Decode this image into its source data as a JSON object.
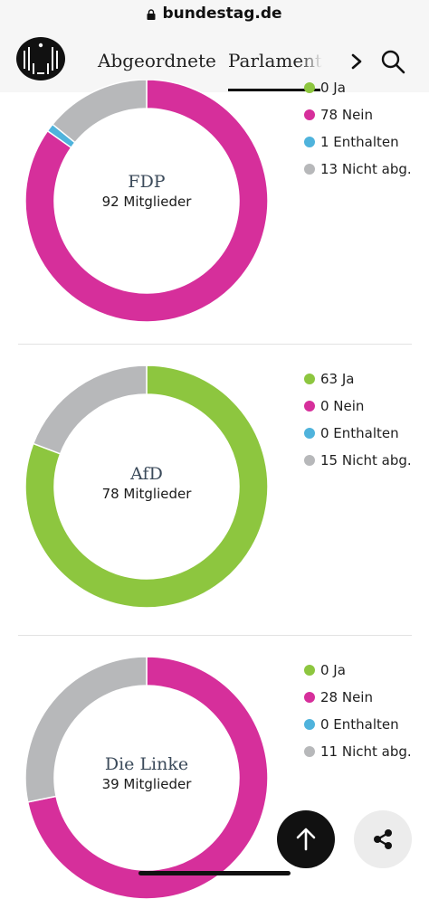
{
  "browser": {
    "url": "bundestag.de"
  },
  "header": {
    "nav": [
      "Abgeordnete",
      "Parlament"
    ],
    "icons": {
      "logo": "bundesadler-logo",
      "next": "chevron-right-icon",
      "search": "search-icon"
    }
  },
  "colors": {
    "ja": "#8dc63f",
    "nein": "#d62f9b",
    "enthalten": "#4fb3dc",
    "nicht": "#b7b8ba"
  },
  "parties": [
    {
      "name": "FDP",
      "members": "92 Mitglieder",
      "legend": [
        "0 Ja",
        "78 Nein",
        "1 Enthalten",
        "13 Nicht abg."
      ],
      "votes": {
        "ja": 0,
        "nein": 78,
        "enthalten": 1,
        "nicht": 13
      }
    },
    {
      "name": "AfD",
      "members": "78 Mitglieder",
      "legend": [
        "63 Ja",
        "0 Nein",
        "0 Enthalten",
        "15 Nicht abg."
      ],
      "votes": {
        "ja": 63,
        "nein": 0,
        "enthalten": 0,
        "nicht": 15
      }
    },
    {
      "name": "Die Linke",
      "members": "39 Mitglieder",
      "legend": [
        "0 Ja",
        "28 Nein",
        "0 Enthalten",
        "11 Nicht abg."
      ],
      "votes": {
        "ja": 0,
        "nein": 28,
        "enthalten": 0,
        "nicht": 11
      }
    }
  ],
  "buttons": {
    "scroll_top": "arrow-up-icon",
    "share": "share-icon"
  }
}
